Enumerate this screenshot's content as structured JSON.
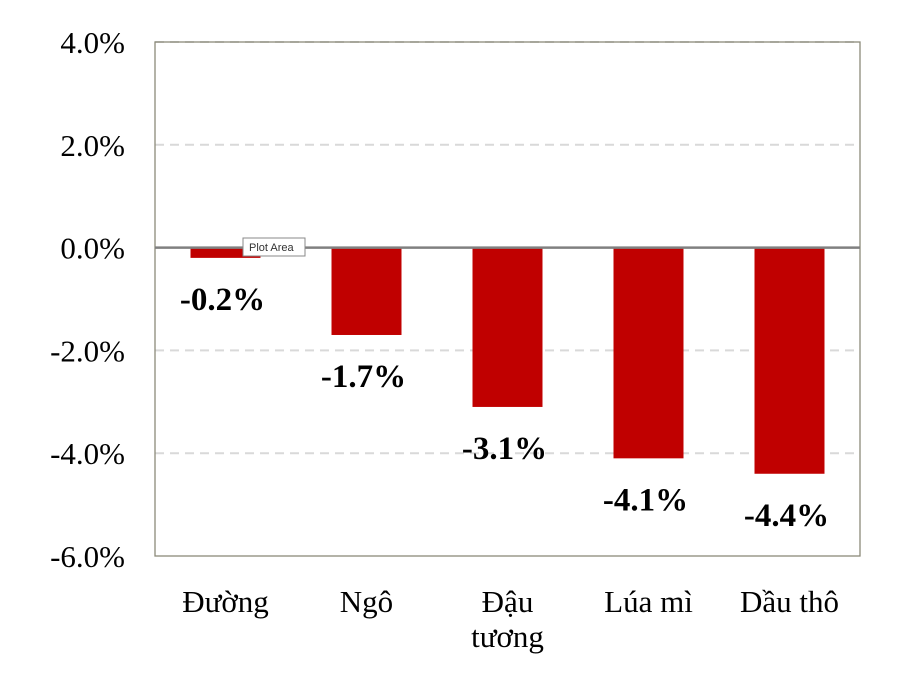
{
  "tooltip": "Plot Area",
  "chart_data": {
    "type": "bar",
    "categories": [
      "Đường",
      "Ngô",
      "Đậu tương",
      "Lúa mì",
      "Dầu thô"
    ],
    "values": [
      -0.2,
      -1.7,
      -3.1,
      -4.1,
      -4.4
    ],
    "data_labels": [
      "-0.2%",
      "-1.7%",
      "-3.1%",
      "-4.1%",
      "-4.4%"
    ],
    "ylim": [
      -6.0,
      4.0
    ],
    "yticks": [
      4.0,
      2.0,
      0.0,
      -2.0,
      -4.0,
      -6.0
    ],
    "ytick_labels": [
      "4.0%",
      "2.0%",
      "0.0%",
      "-2.0%",
      "-4.0%",
      "-6.0%"
    ],
    "title": "",
    "xlabel": "",
    "ylabel": "",
    "grid": true,
    "bar_color": "#c00000",
    "gridline_color": "#d9d9d9",
    "zero_line_color": "#808080",
    "border_color": "#8c8a7a"
  }
}
